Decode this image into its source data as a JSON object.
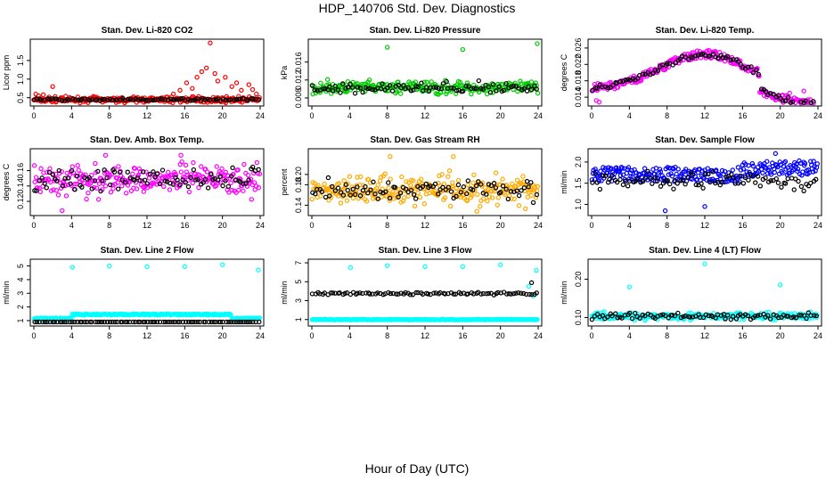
{
  "page": {
    "title": "HDP_140706  Std. Dev. Diagnostics",
    "xlabel": "Hour of Day (UTC)"
  },
  "chart_data": [
    {
      "type": "scatter",
      "title": "Stan. Dev. Li-820 CO2",
      "ylabel": "Licor ppm",
      "xlim": [
        0,
        24
      ],
      "ylim": [
        0.35,
        2.0
      ],
      "xticks": [
        "0",
        "4",
        "8",
        "12",
        "16",
        "20",
        "24"
      ],
      "yticks": [
        "0.5",
        "1.0",
        "1.5"
      ],
      "ytick_values": [
        0.5,
        1.0,
        1.5
      ],
      "series": [
        {
          "color": "#ff0000",
          "base": 0.45,
          "noise": 0.05,
          "outliers": [
            [
              0.2,
              0.6
            ],
            [
              0.5,
              0.55
            ],
            [
              1.0,
              0.58
            ],
            [
              1.6,
              0.52
            ],
            [
              2.0,
              0.8
            ],
            [
              14.8,
              0.6
            ],
            [
              15.5,
              0.7
            ],
            [
              16.2,
              0.9
            ],
            [
              16.8,
              0.75
            ],
            [
              17.3,
              1.05
            ],
            [
              17.8,
              1.2
            ],
            [
              18.3,
              1.3
            ],
            [
              18.7,
              1.97
            ],
            [
              19.2,
              1.15
            ],
            [
              19.5,
              0.95
            ],
            [
              20.3,
              1.05
            ],
            [
              21.0,
              0.8
            ],
            [
              21.5,
              0.9
            ],
            [
              22.0,
              0.7
            ],
            [
              22.8,
              0.85
            ],
            [
              23.2,
              0.72
            ],
            [
              23.6,
              0.6
            ]
          ]
        },
        {
          "color": "#000000",
          "base": 0.45,
          "noise": 0.02,
          "outliers": []
        }
      ]
    },
    {
      "type": "scatter",
      "title": "Stan. Dev. Li-820 Pressure",
      "ylabel": "kPa",
      "xlim": [
        0,
        24
      ],
      "ylim": [
        0.0068,
        0.0205
      ],
      "xticks": [
        "0",
        "4",
        "8",
        "12",
        "16",
        "20",
        "24"
      ],
      "yticks": [
        "0.008",
        "0.012",
        "0.016"
      ],
      "ytick_values": [
        0.008,
        0.012,
        0.016
      ],
      "series": [
        {
          "color": "#00cc00",
          "base": 0.0103,
          "noise": 0.001,
          "outliers": [
            [
              8.0,
              0.0193
            ],
            [
              16.0,
              0.0188
            ],
            [
              23.9,
              0.0201
            ]
          ]
        },
        {
          "color": "#000000",
          "base": 0.0103,
          "noise": 0.0008,
          "outliers": []
        }
      ]
    },
    {
      "type": "scatter",
      "title": "Stan. Dev. Li-820 Temp.",
      "ylabel": "degrees C",
      "xlim": [
        0,
        24
      ],
      "ylim": [
        0.0125,
        0.0275
      ],
      "xticks": [
        "0",
        "4",
        "8",
        "12",
        "16",
        "20",
        "24"
      ],
      "yticks": [
        "0.014",
        "0.018",
        "0.022",
        "0.026"
      ],
      "ytick_values": [
        0.014,
        0.018,
        0.022,
        0.026
      ],
      "series": [
        {
          "color": "#ff00ff",
          "base": 0.02,
          "noise": 0.0012,
          "outliers": [
            [
              0.5,
              0.0132
            ],
            [
              0.8,
              0.0128
            ],
            [
              22.5,
              0.0155
            ],
            [
              21.0,
              0.015
            ]
          ]
        },
        {
          "color": "#000000",
          "base": 0.02,
          "noise": 0.0008,
          "outliers": []
        }
      ]
    },
    {
      "type": "scatter",
      "title": "Stan. Dev. Amb. Box Temp.",
      "ylabel": "degrees C",
      "xlim": [
        0,
        24
      ],
      "ylim": [
        0.105,
        0.185
      ],
      "xticks": [
        "0",
        "4",
        "8",
        "12",
        "16",
        "20",
        "24"
      ],
      "yticks": [
        "0.12",
        "0.14",
        "0.16"
      ],
      "ytick_values": [
        0.12,
        0.14,
        0.16
      ],
      "series": [
        {
          "color": "#ff00ff",
          "base": 0.148,
          "noise": 0.014,
          "outliers": [
            [
              3.0,
              0.108
            ],
            [
              7.6,
              0.18
            ],
            [
              15.6,
              0.18
            ]
          ]
        },
        {
          "color": "#000000",
          "base": 0.148,
          "noise": 0.01,
          "outliers": []
        }
      ]
    },
    {
      "type": "scatter",
      "title": "Stan. Dev. Gas Stream RH",
      "ylabel": "percent",
      "xlim": [
        0,
        24
      ],
      "ylim": [
        0.125,
        0.245
      ],
      "xticks": [
        "0",
        "4",
        "8",
        "12",
        "16",
        "20",
        "24"
      ],
      "yticks": [
        "0.14",
        "0.18",
        "0.20"
      ],
      "ytick_values": [
        0.14,
        0.18,
        0.2
      ],
      "series": [
        {
          "color": "#ffaa00",
          "base": 0.17,
          "noise": 0.02,
          "outliers": [
            [
              17.5,
              0.128
            ],
            [
              8.3,
              0.235
            ],
            [
              15.0,
              0.235
            ]
          ]
        },
        {
          "color": "#000000",
          "base": 0.17,
          "noise": 0.015,
          "outliers": []
        }
      ]
    },
    {
      "type": "scatter",
      "title": "Stan. Dev. Sample Flow",
      "ylabel": "ml/min",
      "xlim": [
        0,
        24
      ],
      "ylim": [
        0.8,
        2.25
      ],
      "xticks": [
        "0",
        "4",
        "8",
        "12",
        "16",
        "20",
        "24"
      ],
      "yticks": [
        "1.0",
        "1.5",
        "2.0"
      ],
      "ytick_values": [
        1.0,
        1.5,
        2.0
      ],
      "series": [
        {
          "color": "#0000ff",
          "base": 1.7,
          "noise": 0.12,
          "outliers": [
            [
              7.8,
              0.85
            ],
            [
              12.0,
              0.95
            ],
            [
              19.5,
              2.2
            ]
          ]
        },
        {
          "color": "#000000",
          "base": 1.55,
          "noise": 0.15,
          "outliers": []
        }
      ]
    },
    {
      "type": "scatter",
      "title": "Stan. Dev. Line 2 Flow",
      "ylabel": "ml/min",
      "xlim": [
        0,
        24
      ],
      "ylim": [
        0.8,
        5.3
      ],
      "xticks": [
        "0",
        "4",
        "8",
        "12",
        "16",
        "20",
        "24"
      ],
      "yticks": [
        "1",
        "2",
        "3",
        "4",
        "5"
      ],
      "ytick_values": [
        1,
        2,
        3,
        4,
        5
      ],
      "series": [
        {
          "color": "#00ffff",
          "base": 1.4,
          "noise": 0.08,
          "outliers": [
            [
              4.1,
              4.9
            ],
            [
              8.0,
              5.0
            ],
            [
              12.0,
              4.95
            ],
            [
              16.0,
              4.95
            ],
            [
              20.0,
              5.1
            ],
            [
              23.8,
              4.7
            ]
          ]
        },
        {
          "color": "#000000",
          "base": 0.9,
          "noise": 0.0,
          "outliers": []
        }
      ]
    },
    {
      "type": "scatter",
      "title": "Stan. Dev. Line 3 Flow",
      "ylabel": "ml/min",
      "xlim": [
        0,
        24
      ],
      "ylim": [
        0.6,
        7.1
      ],
      "xticks": [
        "0",
        "4",
        "8",
        "12",
        "16",
        "20",
        "24"
      ],
      "yticks": [
        "1",
        "3",
        "5",
        "7"
      ],
      "ytick_values": [
        1,
        3,
        5,
        7
      ],
      "series": [
        {
          "color": "#00ffff",
          "base": 1.0,
          "noise": 0.03,
          "outliers": [
            [
              4.1,
              6.5
            ],
            [
              8.0,
              6.7
            ],
            [
              12.0,
              6.6
            ],
            [
              16.0,
              6.6
            ],
            [
              20.0,
              6.8
            ],
            [
              23.8,
              6.2
            ],
            [
              23.0,
              4.5
            ],
            [
              23.5,
              3.5
            ]
          ]
        },
        {
          "color": "#000000",
          "base": 3.75,
          "noise": 0.1,
          "outliers": [
            [
              23.3,
              4.9
            ]
          ]
        }
      ]
    },
    {
      "type": "scatter",
      "title": "Stan. Dev. Line 4 (LT) Flow",
      "ylabel": "ml/min",
      "xlim": [
        0,
        24
      ],
      "ylim": [
        0.085,
        0.245
      ],
      "xticks": [
        "0",
        "4",
        "8",
        "12",
        "16",
        "20",
        "24"
      ],
      "yticks": [
        "0.10",
        "0.20"
      ],
      "ytick_values": [
        0.1,
        0.2
      ],
      "series": [
        {
          "color": "#00ffff",
          "base": 0.104,
          "noise": 0.007,
          "outliers": [
            [
              4.0,
              0.18
            ],
            [
              12.0,
              0.24
            ],
            [
              20.0,
              0.185
            ]
          ]
        },
        {
          "color": "#000000",
          "base": 0.104,
          "noise": 0.006,
          "outliers": []
        }
      ]
    }
  ]
}
